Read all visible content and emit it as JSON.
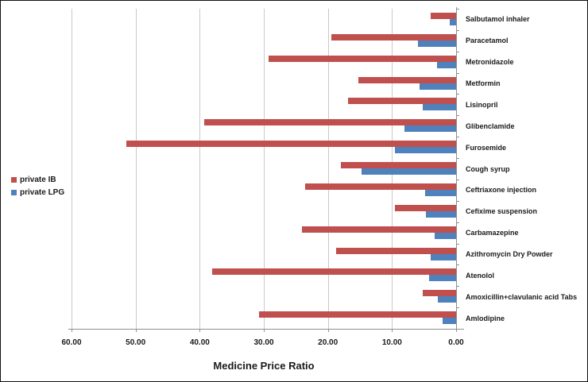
{
  "chart_data": {
    "type": "bar",
    "orientation": "horizontal",
    "axis_reversed": true,
    "grid": true,
    "legend_position": "left",
    "title": "",
    "xlabel": "Medicine Price Ratio",
    "xlim": [
      60,
      0
    ],
    "x_ticks": [
      "60.00",
      "50.00",
      "40.00",
      "30.00",
      "20.00",
      "10.00",
      "0.00"
    ],
    "x_tick_values": [
      60,
      50,
      40,
      30,
      20,
      10,
      0
    ],
    "categories": [
      "Salbutamol inhaler",
      "Paracetamol",
      "Metronidazole",
      "Metformin",
      "Lisinopril",
      "Glibenclamide",
      "Furosemide",
      "Cough syrup",
      "Ceftriaxone injection",
      "Cefixime suspension",
      "Carbamazepine",
      "Azithromycin Dry Powder",
      "Atenolol",
      "Amoxicillin+clavulanic acid Tabs",
      "Amlodipine"
    ],
    "series": [
      {
        "name": "private IB",
        "color": "#c0504d",
        "values": [
          4.0,
          19.5,
          29.3,
          15.2,
          16.8,
          39.3,
          51.5,
          18.0,
          23.6,
          9.5,
          24.0,
          18.7,
          38.0,
          5.2,
          30.8
        ]
      },
      {
        "name": "private LPG",
        "color": "#4f81bd",
        "values": [
          1.0,
          6.0,
          3.0,
          5.7,
          5.2,
          8.0,
          9.5,
          14.8,
          4.8,
          4.7,
          3.3,
          4.0,
          4.2,
          2.8,
          2.1
        ]
      }
    ],
    "colors": {
      "gridline": "#c9c9c9",
      "axis_line": "#8f8f8f",
      "text": "#1a1a1a"
    }
  }
}
